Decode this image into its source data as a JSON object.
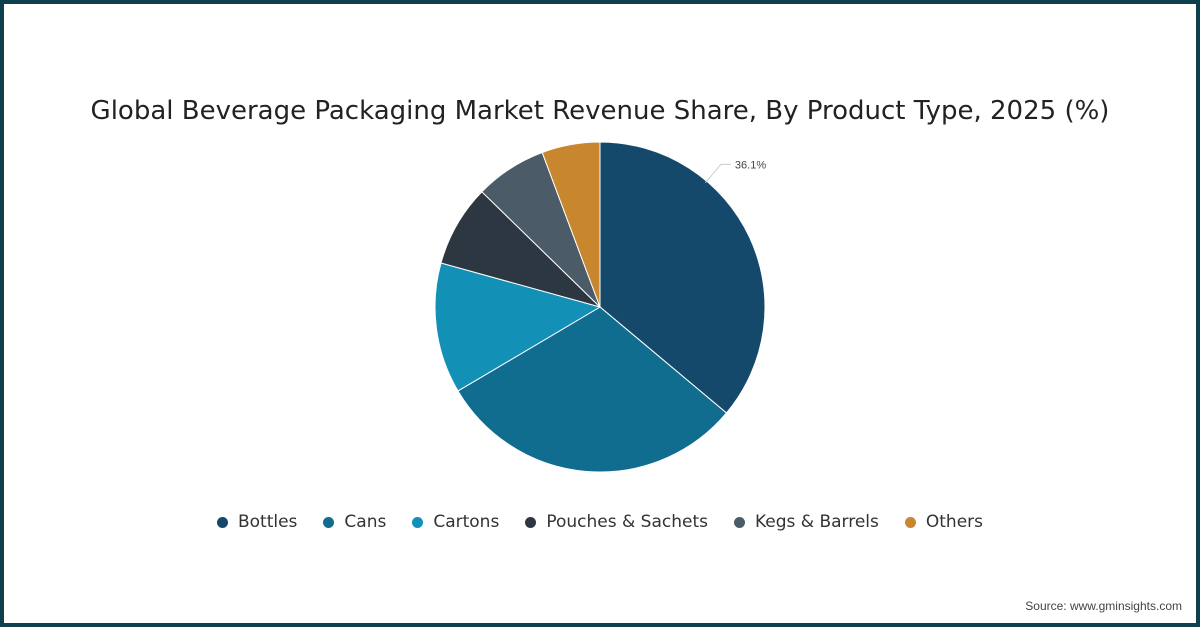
{
  "chart_data": {
    "type": "pie",
    "title": "Global Beverage Packaging Market Revenue Share, By Product Type, 2025 (%)",
    "categories": [
      "Bottles",
      "Cans",
      "Cartons",
      "Pouches & Sachets",
      "Kegs & Barrels",
      "Others"
    ],
    "values": [
      36.1,
      30.4,
      12.8,
      8.0,
      7.0,
      5.7
    ],
    "colors": [
      "#15496b",
      "#116d8f",
      "#1390b6",
      "#2d3741",
      "#4b5b67",
      "#c8862f"
    ],
    "data_labels": [
      {
        "category": "Bottles",
        "text": "36.1%"
      }
    ],
    "legend_position": "bottom"
  },
  "source": "Source: www.gminsights.com"
}
